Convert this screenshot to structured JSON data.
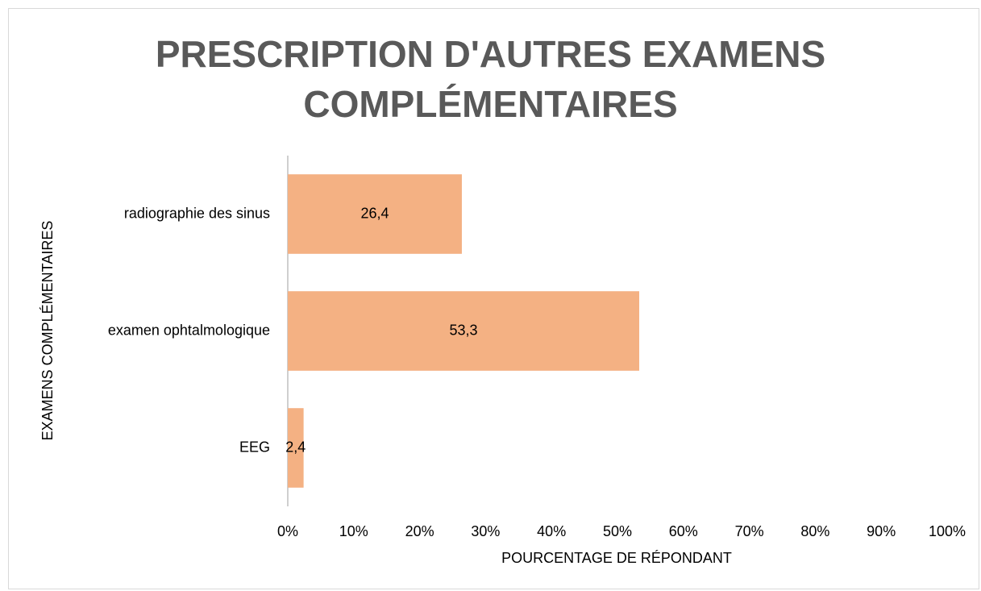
{
  "chart_data": {
    "type": "bar",
    "orientation": "horizontal",
    "title": "PRESCRIPTION D'AUTRES EXAMENS COMPLÉMENTAIRES",
    "xlabel": "POURCENTAGE DE RÉPONDANT",
    "ylabel": "EXAMENS COMPLÉMENTAIRES",
    "categories": [
      "radiographie des sinus",
      "examen ophtalmologique",
      "EEG"
    ],
    "values": [
      26.4,
      53.3,
      2.4
    ],
    "value_labels": [
      "26,4",
      "53,3",
      "2,4"
    ],
    "color": "#f4b183",
    "xlim": [
      0,
      100
    ],
    "xticks": [
      {
        "value": 0,
        "label": "0%"
      },
      {
        "value": 10,
        "label": "10%"
      },
      {
        "value": 20,
        "label": "20%"
      },
      {
        "value": 30,
        "label": "30%"
      },
      {
        "value": 40,
        "label": "40%"
      },
      {
        "value": 50,
        "label": "50%"
      },
      {
        "value": 60,
        "label": "60%"
      },
      {
        "value": 70,
        "label": "70%"
      },
      {
        "value": 80,
        "label": "80%"
      },
      {
        "value": 90,
        "label": "90%"
      },
      {
        "value": 100,
        "label": "100%"
      }
    ],
    "grid": false
  }
}
